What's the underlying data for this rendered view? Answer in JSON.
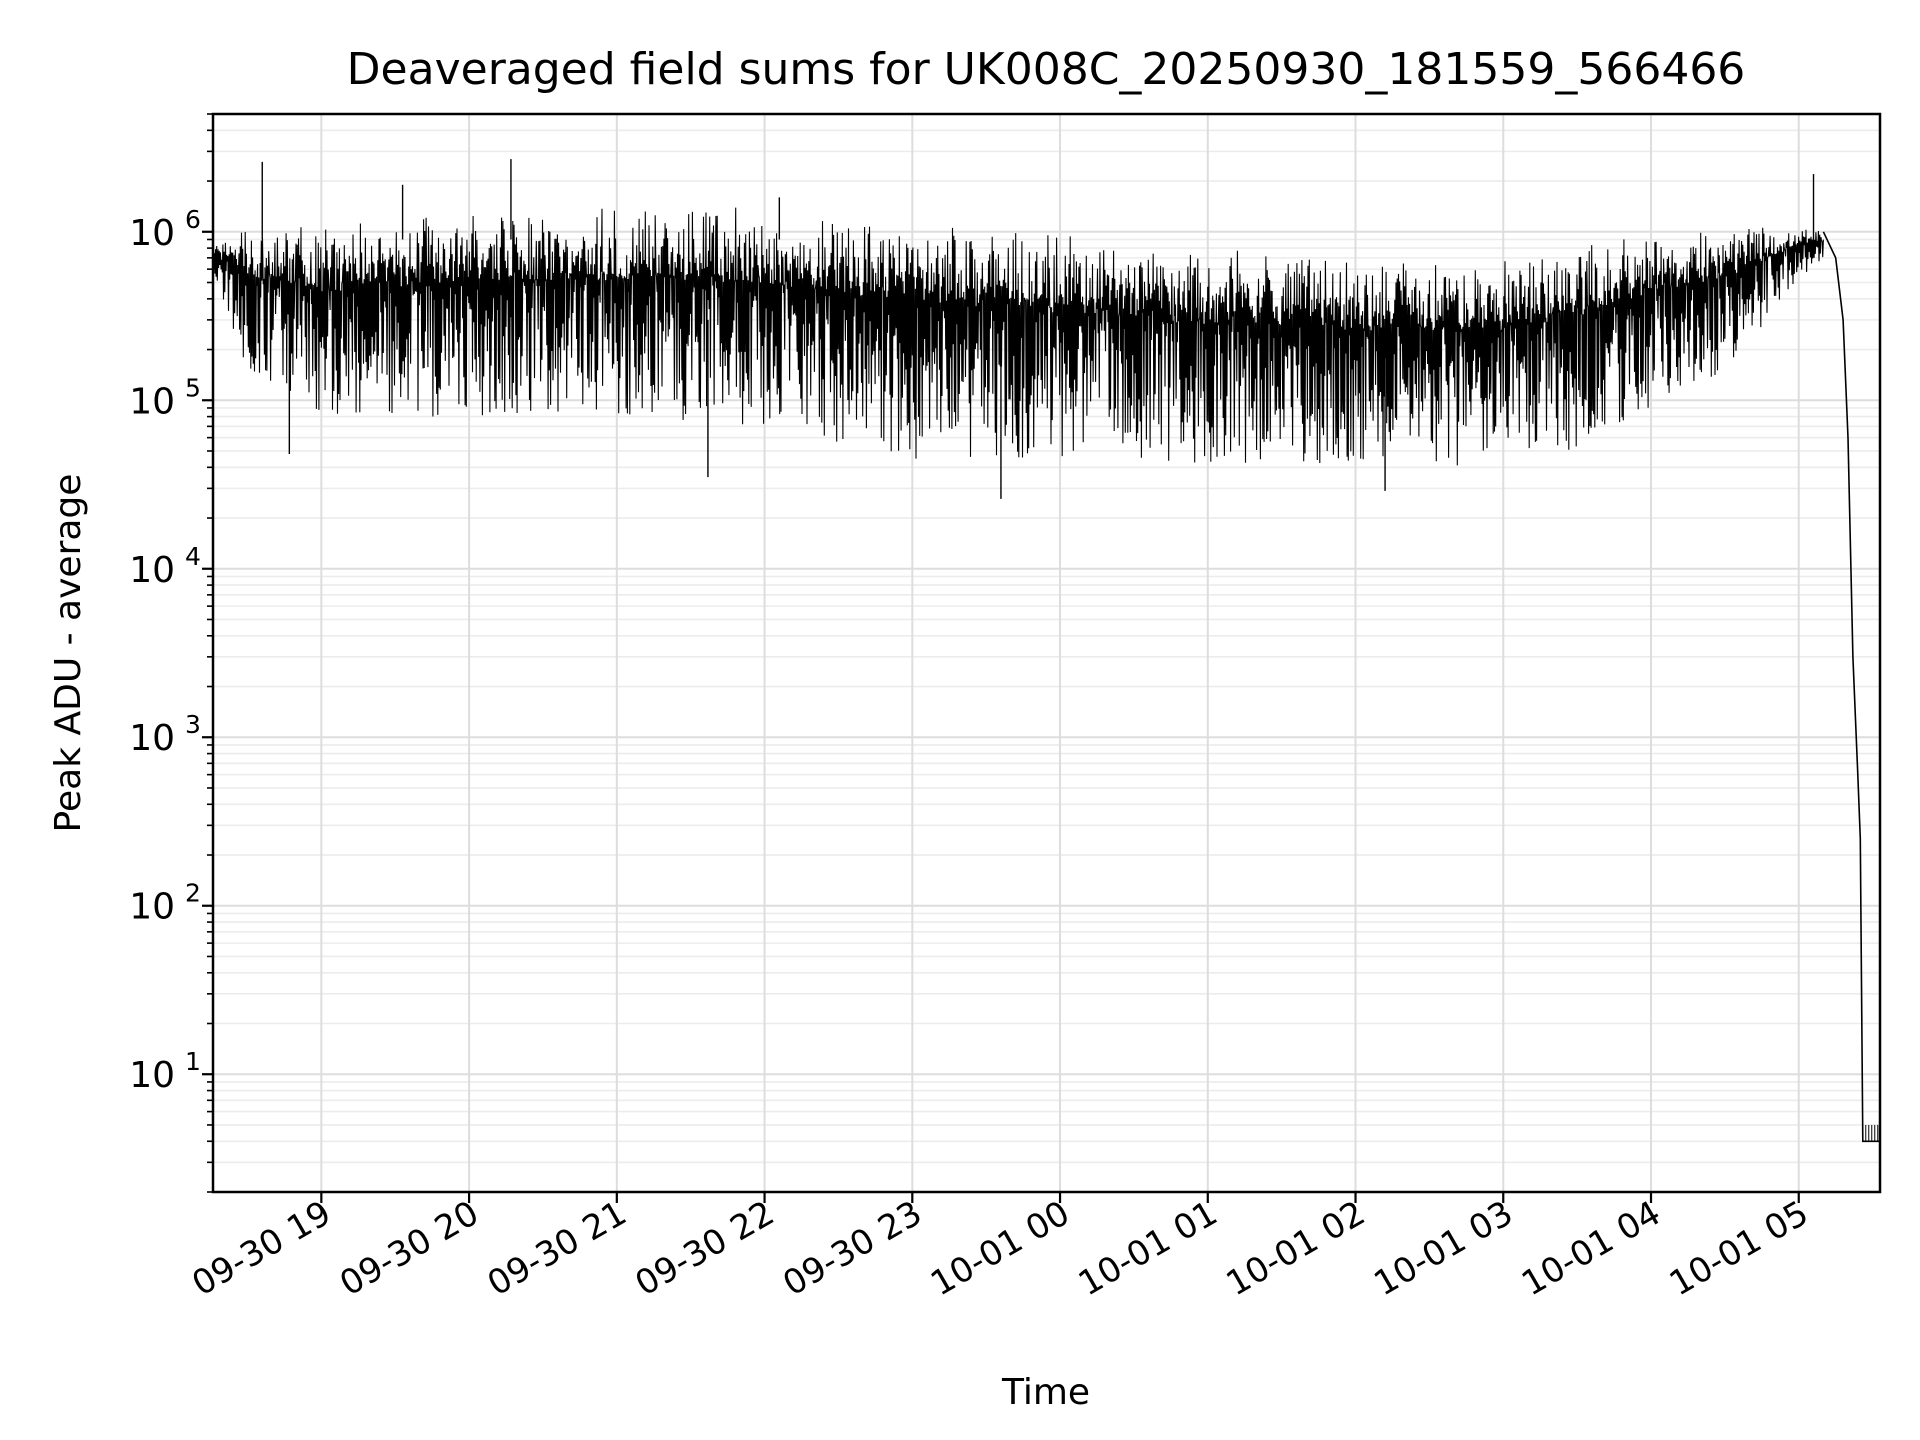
{
  "chart_data": {
    "type": "line",
    "title": "Deaveraged field sums for UK008C_20250930_181559_566466",
    "xlabel": "Time",
    "ylabel": "Peak ADU - average",
    "y_scale": "log",
    "ylim": [
      2,
      5000000
    ],
    "xlim": [
      "2025-09-30 18:16",
      "2025-10-01 05:33"
    ],
    "grid": true,
    "grid_minor": true,
    "x_ticks": [
      {
        "t": "2025-09-30 19:00",
        "label": "09-30 19"
      },
      {
        "t": "2025-09-30 20:00",
        "label": "09-30 20"
      },
      {
        "t": "2025-09-30 21:00",
        "label": "09-30 21"
      },
      {
        "t": "2025-09-30 22:00",
        "label": "09-30 22"
      },
      {
        "t": "2025-09-30 23:00",
        "label": "09-30 23"
      },
      {
        "t": "2025-10-01 00:00",
        "label": "10-01 00"
      },
      {
        "t": "2025-10-01 01:00",
        "label": "10-01 01"
      },
      {
        "t": "2025-10-01 02:00",
        "label": "10-01 02"
      },
      {
        "t": "2025-10-01 03:00",
        "label": "10-01 03"
      },
      {
        "t": "2025-10-01 04:00",
        "label": "10-01 04"
      },
      {
        "t": "2025-10-01 05:00",
        "label": "10-01 05"
      }
    ],
    "y_ticks": [
      {
        "value": 10,
        "base": "10",
        "exp": "1"
      },
      {
        "value": 100,
        "base": "10",
        "exp": "2"
      },
      {
        "value": 1000,
        "base": "10",
        "exp": "3"
      },
      {
        "value": 10000,
        "base": "10",
        "exp": "4"
      },
      {
        "value": 100000,
        "base": "10",
        "exp": "5"
      },
      {
        "value": 1000000,
        "base": "10",
        "exp": "6"
      }
    ],
    "series": [
      {
        "color": "#000000",
        "style": "dense oscillating trace",
        "upper_envelope": [
          [
            "2025-09-30 18:16",
            800000
          ],
          [
            "2025-09-30 18:30",
            1100000
          ],
          [
            "2025-09-30 19:00",
            1100000
          ],
          [
            "2025-09-30 19:30",
            1200000
          ],
          [
            "2025-09-30 20:00",
            1400000
          ],
          [
            "2025-09-30 21:00",
            1400000
          ],
          [
            "2025-09-30 22:00",
            1400000
          ],
          [
            "2025-09-30 23:00",
            1200000
          ],
          [
            "2025-10-01 00:00",
            1000000
          ],
          [
            "2025-10-01 01:00",
            800000
          ],
          [
            "2025-10-01 02:00",
            700000
          ],
          [
            "2025-10-01 03:00",
            700000
          ],
          [
            "2025-10-01 04:00",
            1000000
          ],
          [
            "2025-10-01 05:00",
            1100000
          ],
          [
            "2025-10-01 05:10",
            1000000
          ],
          [
            "2025-10-01 05:15",
            500000
          ]
        ],
        "lower_envelope": [
          [
            "2025-09-30 18:16",
            600000
          ],
          [
            "2025-09-30 18:30",
            150000
          ],
          [
            "2025-09-30 19:00",
            80000
          ],
          [
            "2025-09-30 20:00",
            80000
          ],
          [
            "2025-09-30 21:00",
            80000
          ],
          [
            "2025-09-30 22:00",
            70000
          ],
          [
            "2025-09-30 23:00",
            45000
          ],
          [
            "2025-10-01 00:00",
            42000
          ],
          [
            "2025-10-01 01:00",
            40000
          ],
          [
            "2025-10-01 02:00",
            40000
          ],
          [
            "2025-10-01 03:00",
            40000
          ],
          [
            "2025-10-01 03:30",
            50000
          ],
          [
            "2025-10-01 04:00",
            90000
          ],
          [
            "2025-10-01 04:30",
            150000
          ],
          [
            "2025-10-01 05:00",
            500000
          ],
          [
            "2025-10-01 05:10",
            700000
          ]
        ],
        "spikes": [
          [
            "2025-09-30 18:36",
            2600000
          ],
          [
            "2025-09-30 19:33",
            1900000
          ],
          [
            "2025-09-30 20:17",
            2700000
          ],
          [
            "2025-09-30 22:06",
            1600000
          ],
          [
            "2025-10-01 05:06",
            2200000
          ]
        ],
        "dips": [
          [
            "2025-09-30 18:47",
            48000
          ],
          [
            "2025-09-30 21:37",
            35000
          ],
          [
            "2025-09-30 23:36",
            26000
          ],
          [
            "2025-10-01 02:12",
            29000
          ]
        ],
        "tail": [
          [
            "2025-10-01 05:10",
            1000000
          ],
          [
            "2025-10-01 05:15",
            700000
          ],
          [
            "2025-10-01 05:18",
            300000
          ],
          [
            "2025-10-01 05:20",
            60000
          ],
          [
            "2025-10-01 05:22",
            3000
          ],
          [
            "2025-10-01 05:24",
            600
          ],
          [
            "2025-10-01 05:25",
            250
          ],
          [
            "2025-10-01 05:26",
            4
          ],
          [
            "2025-10-01 05:33",
            4
          ]
        ]
      }
    ]
  }
}
